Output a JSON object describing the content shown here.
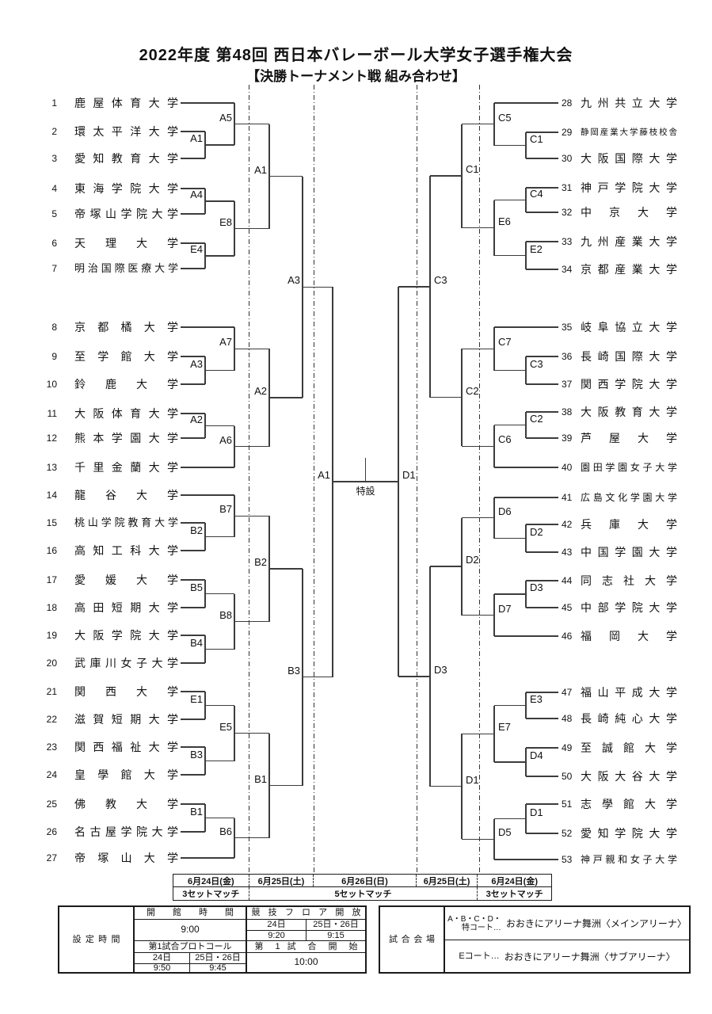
{
  "title": "2022年度 第48回 西日本バレーボール大学女子選手権大会",
  "subtitle": "【決勝トーナメント戦 組み合わせ】",
  "final": {
    "left_code": "A1",
    "right_code": "D1",
    "court": "特設"
  },
  "teams": [
    {
      "no": 1,
      "name": "鹿屋体育大学"
    },
    {
      "no": 2,
      "name": "環太平洋大学"
    },
    {
      "no": 3,
      "name": "愛知教育大学"
    },
    {
      "no": 4,
      "name": "東海学院大学"
    },
    {
      "no": 5,
      "name": "帝塚山学院大学"
    },
    {
      "no": 6,
      "name": "天理大学"
    },
    {
      "no": 7,
      "name": "明治国際医療大学"
    },
    {
      "no": 8,
      "name": "京都橘大学"
    },
    {
      "no": 9,
      "name": "至学館大学"
    },
    {
      "no": 10,
      "name": "鈴鹿大学"
    },
    {
      "no": 11,
      "name": "大阪体育大学"
    },
    {
      "no": 12,
      "name": "熊本学園大学"
    },
    {
      "no": 13,
      "name": "千里金蘭大学"
    },
    {
      "no": 14,
      "name": "龍谷大学"
    },
    {
      "no": 15,
      "name": "桃山学院教育大学"
    },
    {
      "no": 16,
      "name": "高知工科大学"
    },
    {
      "no": 17,
      "name": "愛媛大学"
    },
    {
      "no": 18,
      "name": "高田短期大学"
    },
    {
      "no": 19,
      "name": "大阪学院大学"
    },
    {
      "no": 20,
      "name": "武庫川女子大学"
    },
    {
      "no": 21,
      "name": "関西大学"
    },
    {
      "no": 22,
      "name": "滋賀短期大学"
    },
    {
      "no": 23,
      "name": "関西福祉大学"
    },
    {
      "no": 24,
      "name": "皇學館大学"
    },
    {
      "no": 25,
      "name": "佛教大学"
    },
    {
      "no": 26,
      "name": "名古屋学院大学"
    },
    {
      "no": 27,
      "name": "帝塚山大学"
    },
    {
      "no": 28,
      "name": "九州共立大学"
    },
    {
      "no": 29,
      "name": "静岡産業大学藤枝校舎"
    },
    {
      "no": 30,
      "name": "大阪国際大学"
    },
    {
      "no": 31,
      "name": "神戸学院大学"
    },
    {
      "no": 32,
      "name": "中京大学"
    },
    {
      "no": 33,
      "name": "九州産業大学"
    },
    {
      "no": 34,
      "name": "京都産業大学"
    },
    {
      "no": 35,
      "name": "岐阜協立大学"
    },
    {
      "no": 36,
      "name": "長崎国際大学"
    },
    {
      "no": 37,
      "name": "関西学院大学"
    },
    {
      "no": 38,
      "name": "大阪教育大学"
    },
    {
      "no": 39,
      "name": "芦屋大学"
    },
    {
      "no": 40,
      "name": "園田学園女子大学"
    },
    {
      "no": 41,
      "name": "広島文化学園大学"
    },
    {
      "no": 42,
      "name": "兵庫大学"
    },
    {
      "no": 43,
      "name": "中国学園大学"
    },
    {
      "no": 44,
      "name": "同志社大学"
    },
    {
      "no": 45,
      "name": "中部学院大学"
    },
    {
      "no": 46,
      "name": "福岡大学"
    },
    {
      "no": 47,
      "name": "福山平成大学"
    },
    {
      "no": 48,
      "name": "長崎純心大学"
    },
    {
      "no": 49,
      "name": "至誠館大学"
    },
    {
      "no": 50,
      "name": "大阪大谷大学"
    },
    {
      "no": 51,
      "name": "志學館大学"
    },
    {
      "no": 52,
      "name": "愛知学院大学"
    },
    {
      "no": 53,
      "name": "神戸親和女子大学"
    }
  ],
  "bracket": {
    "left": [
      {
        "code": "A3",
        "children": [
          {
            "code": "A1",
            "children": [
              {
                "code": "A5",
                "children": [
                  {
                    "team": 1
                  },
                  {
                    "code": "A1",
                    "children": [
                      {
                        "team": 2
                      },
                      {
                        "team": 3
                      }
                    ]
                  }
                ]
              },
              {
                "code": "E8",
                "children": [
                  {
                    "code": "A4",
                    "children": [
                      {
                        "team": 4
                      },
                      {
                        "team": 5
                      }
                    ]
                  },
                  {
                    "code": "E4",
                    "children": [
                      {
                        "team": 6
                      },
                      {
                        "team": 7
                      }
                    ]
                  }
                ]
              }
            ]
          },
          {
            "code": "A2",
            "children": [
              {
                "code": "A7",
                "children": [
                  {
                    "team": 8
                  },
                  {
                    "code": "A3",
                    "children": [
                      {
                        "team": 9
                      },
                      {
                        "team": 10
                      }
                    ]
                  }
                ]
              },
              {
                "code": "A6",
                "children": [
                  {
                    "code": "A2",
                    "children": [
                      {
                        "team": 11
                      },
                      {
                        "team": 12
                      }
                    ]
                  },
                  {
                    "team": 13
                  }
                ]
              }
            ]
          }
        ]
      },
      {
        "code": "B3",
        "children": [
          {
            "code": "B2",
            "children": [
              {
                "code": "B7",
                "children": [
                  {
                    "team": 14
                  },
                  {
                    "code": "B2",
                    "children": [
                      {
                        "team": 15
                      },
                      {
                        "team": 16
                      }
                    ]
                  }
                ]
              },
              {
                "code": "B8",
                "children": [
                  {
                    "code": "B5",
                    "children": [
                      {
                        "team": 17
                      },
                      {
                        "team": 18
                      }
                    ]
                  },
                  {
                    "code": "B4",
                    "children": [
                      {
                        "team": 19
                      },
                      {
                        "team": 20
                      }
                    ]
                  }
                ]
              }
            ]
          },
          {
            "code": "B1",
            "children": [
              {
                "code": "E5",
                "children": [
                  {
                    "code": "E1",
                    "children": [
                      {
                        "team": 21
                      },
                      {
                        "team": 22
                      }
                    ]
                  },
                  {
                    "code": "B3",
                    "children": [
                      {
                        "team": 23
                      },
                      {
                        "team": 24
                      }
                    ]
                  }
                ]
              },
              {
                "code": "B6",
                "children": [
                  {
                    "code": "B1",
                    "children": [
                      {
                        "team": 25
                      },
                      {
                        "team": 26
                      }
                    ]
                  },
                  {
                    "team": 27
                  }
                ]
              }
            ]
          }
        ]
      }
    ],
    "right": [
      {
        "code": "C3",
        "children": [
          {
            "code": "C1",
            "children": [
              {
                "code": "C5",
                "children": [
                  {
                    "team": 28
                  },
                  {
                    "code": "C1",
                    "children": [
                      {
                        "team": 29
                      },
                      {
                        "team": 30
                      }
                    ]
                  }
                ]
              },
              {
                "code": "E6",
                "children": [
                  {
                    "code": "C4",
                    "children": [
                      {
                        "team": 31
                      },
                      {
                        "team": 32
                      }
                    ]
                  },
                  {
                    "code": "E2",
                    "children": [
                      {
                        "team": 33
                      },
                      {
                        "team": 34
                      }
                    ]
                  }
                ]
              }
            ]
          },
          {
            "code": "C2",
            "children": [
              {
                "code": "C7",
                "children": [
                  {
                    "team": 35
                  },
                  {
                    "code": "C3",
                    "children": [
                      {
                        "team": 36
                      },
                      {
                        "team": 37
                      }
                    ]
                  }
                ]
              },
              {
                "code": "C6",
                "children": [
                  {
                    "code": "C2",
                    "children": [
                      {
                        "team": 38
                      },
                      {
                        "team": 39
                      }
                    ]
                  },
                  {
                    "team": 40
                  }
                ]
              }
            ]
          }
        ]
      },
      {
        "code": "D3",
        "children": [
          {
            "code": "D2",
            "children": [
              {
                "code": "D6",
                "children": [
                  {
                    "team": 41
                  },
                  {
                    "code": "D2",
                    "children": [
                      {
                        "team": 42
                      },
                      {
                        "team": 43
                      }
                    ]
                  }
                ]
              },
              {
                "code": "D7",
                "children": [
                  {
                    "code": "D3",
                    "children": [
                      {
                        "team": 44
                      },
                      {
                        "team": 45
                      }
                    ]
                  },
                  {
                    "team": 46
                  }
                ]
              }
            ]
          },
          {
            "code": "D1",
            "children": [
              {
                "code": "E7",
                "children": [
                  {
                    "code": "E3",
                    "children": [
                      {
                        "team": 47
                      },
                      {
                        "team": 48
                      }
                    ]
                  },
                  {
                    "code": "D4",
                    "children": [
                      {
                        "team": 49
                      },
                      {
                        "team": 50
                      }
                    ]
                  }
                ]
              },
              {
                "code": "D5",
                "children": [
                  {
                    "code": "D1",
                    "children": [
                      {
                        "team": 51
                      },
                      {
                        "team": 52
                      }
                    ]
                  },
                  {
                    "team": 53
                  }
                ]
              }
            ]
          }
        ]
      }
    ]
  },
  "schedule": {
    "dates": [
      "6月24日(金)",
      "6月25日(土)",
      "6月26日(日)",
      "6月25日(土)",
      "6月24日(金)"
    ],
    "formats": [
      "3セットマッチ",
      "5セットマッチ",
      "3セットマッチ"
    ]
  },
  "settings": {
    "label": "設定時間",
    "opening": {
      "header": "開館時間",
      "time": "9:00"
    },
    "floor": {
      "header": "競技フロア開放",
      "days": [
        "24日",
        "25日・26日"
      ],
      "times": [
        "9:20",
        "9:15"
      ]
    },
    "protocol": {
      "header": "第1試合プロトコール",
      "days": [
        "24日",
        "25日・26日"
      ],
      "times": [
        "9:50",
        "9:45"
      ]
    },
    "first_game": {
      "header": "第 1 試 合 開 始",
      "time": "10:00"
    }
  },
  "venue": {
    "label": "試合会場",
    "rows": [
      {
        "courts1": "A・B・C・D・",
        "courts2": "特コート…",
        "name": "おおきにアリーナ舞洲〈メインアリーナ〉"
      },
      {
        "courts1": "Eコート…",
        "courts2": "",
        "name": "おおきにアリーナ舞洲〈サブアリーナ〉"
      }
    ]
  }
}
